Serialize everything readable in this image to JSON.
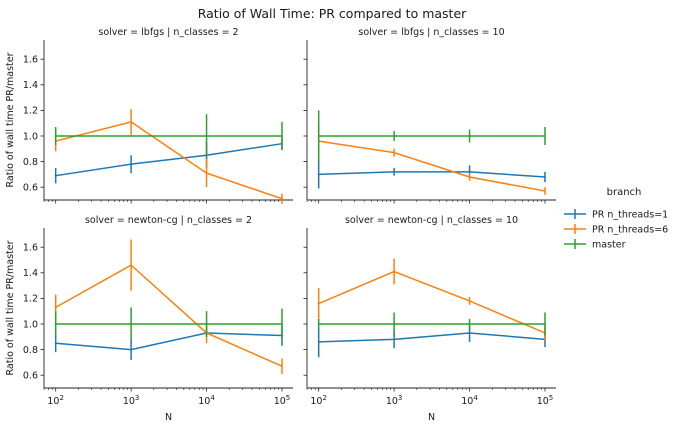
{
  "title": "Ratio of Wall Time: PR compared to master",
  "legend": {
    "title": "branch",
    "placement": "center-right",
    "entries": [
      {
        "label": "PR n_threads=1",
        "color": "#1f77b4"
      },
      {
        "label": "PR n_threads=6",
        "color": "#ff7f0e"
      },
      {
        "label": "master",
        "color": "#2ca02c"
      }
    ]
  },
  "chart_data": {
    "type": "line",
    "x_scale": "log",
    "xlabel": "N",
    "ylabel": "Ratio of wall time PR/master",
    "x_ticks": [
      {
        "value": 100,
        "base": "10",
        "exp": "2"
      },
      {
        "value": 1000,
        "base": "10",
        "exp": "3"
      },
      {
        "value": 10000,
        "base": "10",
        "exp": "4"
      },
      {
        "value": 100000,
        "base": "10",
        "exp": "5"
      }
    ],
    "y_ticks": [
      "0.6",
      "0.8",
      "1.0",
      "1.2",
      "1.4",
      "1.6"
    ],
    "ylim": [
      0.5,
      1.75
    ],
    "grid": false,
    "panels": [
      {
        "title": "solver = lbfgs | n_classes = 2",
        "series": [
          {
            "name": "PR n_threads=1",
            "color": "#1f77b4",
            "x": [
              100,
              1000,
              10000,
              100000
            ],
            "y": [
              0.69,
              0.78,
              0.85,
              0.94
            ],
            "err": [
              0.06,
              0.07,
              0.1,
              0.05
            ]
          },
          {
            "name": "PR n_threads=6",
            "color": "#ff7f0e",
            "x": [
              100,
              1000,
              10000,
              100000
            ],
            "y": [
              0.96,
              1.11,
              0.71,
              0.51
            ],
            "err": [
              0.08,
              0.1,
              0.11,
              0.04
            ]
          },
          {
            "name": "master",
            "color": "#2ca02c",
            "x": [
              100,
              1000,
              10000,
              100000
            ],
            "y": [
              1.0,
              1.0,
              1.0,
              1.0
            ],
            "err": [
              0.07,
              0.0,
              0.17,
              0.11
            ]
          }
        ]
      },
      {
        "title": "solver = lbfgs | n_classes = 10",
        "series": [
          {
            "name": "PR n_threads=1",
            "color": "#1f77b4",
            "x": [
              100,
              1000,
              10000,
              100000
            ],
            "y": [
              0.7,
              0.72,
              0.72,
              0.68
            ],
            "err": [
              0.11,
              0.03,
              0.05,
              0.04
            ]
          },
          {
            "name": "PR n_threads=6",
            "color": "#ff7f0e",
            "x": [
              100,
              1000,
              10000,
              100000
            ],
            "y": [
              0.96,
              0.87,
              0.68,
              0.57
            ],
            "err": [
              0.14,
              0.03,
              0.03,
              0.03
            ]
          },
          {
            "name": "master",
            "color": "#2ca02c",
            "x": [
              100,
              1000,
              10000,
              100000
            ],
            "y": [
              1.0,
              1.0,
              1.0,
              1.0
            ],
            "err": [
              0.2,
              0.04,
              0.05,
              0.07
            ]
          }
        ]
      },
      {
        "title": "solver = newton-cg | n_classes = 2",
        "series": [
          {
            "name": "PR n_threads=1",
            "color": "#1f77b4",
            "x": [
              100,
              1000,
              10000,
              100000
            ],
            "y": [
              0.85,
              0.8,
              0.93,
              0.91
            ],
            "err": [
              0.07,
              0.08,
              0.03,
              0.08
            ]
          },
          {
            "name": "PR n_threads=6",
            "color": "#ff7f0e",
            "x": [
              100,
              1000,
              10000,
              100000
            ],
            "y": [
              1.13,
              1.46,
              0.93,
              0.67
            ],
            "err": [
              0.1,
              0.2,
              0.08,
              0.06
            ]
          },
          {
            "name": "master",
            "color": "#2ca02c",
            "x": [
              100,
              1000,
              10000,
              100000
            ],
            "y": [
              1.0,
              1.0,
              1.0,
              1.0
            ],
            "err": [
              0.1,
              0.13,
              0.1,
              0.12
            ]
          }
        ]
      },
      {
        "title": "solver = newton-cg | n_classes = 10",
        "series": [
          {
            "name": "PR n_threads=1",
            "color": "#1f77b4",
            "x": [
              100,
              1000,
              10000,
              100000
            ],
            "y": [
              0.86,
              0.88,
              0.93,
              0.88
            ],
            "err": [
              0.12,
              0.07,
              0.07,
              0.06
            ]
          },
          {
            "name": "PR n_threads=6",
            "color": "#ff7f0e",
            "x": [
              100,
              1000,
              10000,
              100000
            ],
            "y": [
              1.16,
              1.41,
              1.18,
              0.93
            ],
            "err": [
              0.12,
              0.1,
              0.03,
              0.06
            ]
          },
          {
            "name": "master",
            "color": "#2ca02c",
            "x": [
              100,
              1000,
              10000,
              100000
            ],
            "y": [
              1.0,
              1.0,
              1.0,
              1.0
            ],
            "err": [
              0.04,
              0.09,
              0.04,
              0.09
            ]
          }
        ]
      }
    ]
  }
}
